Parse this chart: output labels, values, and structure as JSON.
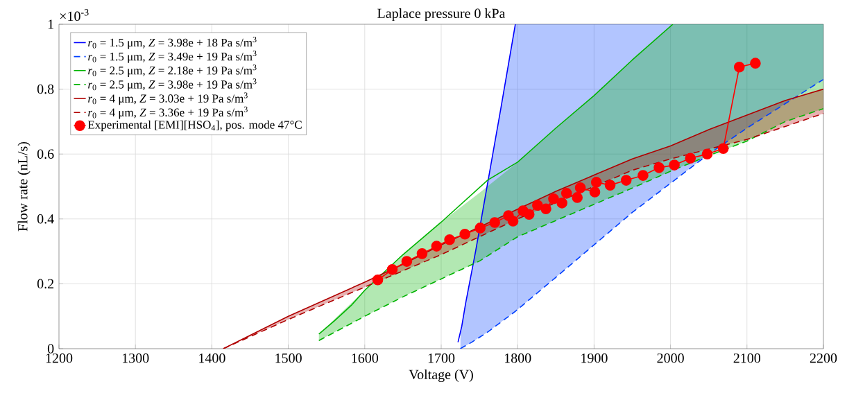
{
  "chart_data": {
    "type": "line",
    "title": "Laplace pressure 0 kPa",
    "xlabel": "Voltage (V)",
    "ylabel": "Flow rate (nL/s)",
    "annotations": [
      "×10$^{-3}$"
    ],
    "xlim": [
      1200,
      2200
    ],
    "xticks": [
      1200,
      1300,
      1400,
      1500,
      1600,
      1700,
      1800,
      1900,
      2000,
      2100,
      2200
    ],
    "ylim": [
      0,
      1
    ],
    "yticks": [
      0,
      0.2,
      0.4,
      0.6,
      0.8,
      1
    ],
    "grid": true,
    "legend": "top left",
    "series": [
      {
        "name": "*r*$_{0}$ = 1.5 μm, *Z* = 3.98e + 18 Pa s/m$^{3}$",
        "color": "#0000ff",
        "line_style": "solid",
        "x": [
          1722,
          1727,
          1732,
          1745,
          1760,
          1778,
          1797
        ],
        "values": [
          0.02,
          0.07,
          0.14,
          0.3,
          0.5,
          0.74,
          1.0
        ]
      },
      {
        "name": "*r*$_{0}$ = 1.5 μm, *Z* = 3.49e + 19 Pa s/m$^{3}$",
        "color": "#0040ff",
        "line_style": "dashed",
        "x": [
          1725,
          1740,
          1760,
          1797,
          1850,
          1900,
          1950,
          2000,
          2050,
          2100,
          2150,
          2200
        ],
        "values": [
          0,
          0.02,
          0.05,
          0.115,
          0.22,
          0.32,
          0.42,
          0.51,
          0.6,
          0.68,
          0.755,
          0.83
        ],
        "lower": [
          0,
          0.02,
          0.05,
          0.115,
          0.22,
          0.32,
          0.42,
          0.51,
          0.6,
          0.68,
          0.755,
          0.83
        ],
        "upper": [
          0.05,
          0.24,
          0.5,
          1,
          1,
          1,
          1,
          1,
          1,
          1,
          1,
          1
        ]
      },
      {
        "name": "*r*$_{0}$ = 2.5 μm, *Z* = 2.18e + 19 Pa s/m$^{3}$",
        "color": "#00b400",
        "line_style": "solid",
        "x": [
          1540,
          1560,
          1583,
          1600,
          1650,
          1700,
          1761,
          1800,
          1850,
          1900,
          1950,
          2003
        ],
        "values": [
          0.045,
          0.085,
          0.135,
          0.18,
          0.29,
          0.39,
          0.52,
          0.575,
          0.68,
          0.78,
          0.89,
          1.0
        ]
      },
      {
        "name": "*r*$_{0}$ = 2.5 μm, *Z* = 3.98e + 19 Pa s/m$^{3}$",
        "color": "#00b400",
        "line_style": "dashed",
        "x": [
          1540,
          1600,
          1650,
          1700,
          1750,
          1800,
          1850,
          1900,
          1950,
          2003,
          2050,
          2100,
          2150,
          2200
        ],
        "values": [
          0.025,
          0.1,
          0.16,
          0.215,
          0.27,
          0.345,
          0.395,
          0.445,
          0.495,
          0.55,
          0.595,
          0.64,
          0.7,
          0.74
        ],
        "lower": [
          0.025,
          0.1,
          0.16,
          0.215,
          0.27,
          0.345,
          0.395,
          0.445,
          0.495,
          0.55,
          0.595,
          0.64,
          0.7,
          0.74
        ],
        "upper": [
          0.045,
          0.18,
          0.29,
          0.39,
          0.48,
          0.575,
          0.68,
          0.78,
          0.89,
          1,
          1,
          1,
          1,
          1
        ]
      },
      {
        "name": "*r*$_{0}$ = 4 μm, *Z* = 3.03e + 19 Pa s/m$^{3}$",
        "color": "#b00000",
        "line_style": "solid",
        "x": [
          1415,
          1500,
          1600,
          1650,
          1700,
          1750,
          1800,
          1850,
          1900,
          1950,
          2000,
          2050,
          2100,
          2150,
          2200
        ],
        "values": [
          0,
          0.1,
          0.205,
          0.26,
          0.32,
          0.375,
          0.43,
          0.485,
          0.535,
          0.585,
          0.625,
          0.675,
          0.72,
          0.765,
          0.8
        ]
      },
      {
        "name": "*r*$_{0}$ = 4 μm, *Z* = 3.36e + 19 Pa s/m$^{3}$",
        "color": "#b00000",
        "line_style": "dashed",
        "x": [
          1415,
          1500,
          1600,
          1650,
          1700,
          1750,
          1800,
          1850,
          1900,
          1950,
          2000,
          2050,
          2100,
          2150,
          2200
        ],
        "values": [
          0,
          0.09,
          0.19,
          0.24,
          0.29,
          0.345,
          0.4,
          0.45,
          0.5,
          0.55,
          0.585,
          0.615,
          0.645,
          0.685,
          0.725
        ],
        "lower": [
          0,
          0.09,
          0.19,
          0.24,
          0.29,
          0.345,
          0.4,
          0.45,
          0.5,
          0.55,
          0.585,
          0.615,
          0.645,
          0.685,
          0.725
        ],
        "upper": [
          0,
          0.1,
          0.205,
          0.26,
          0.32,
          0.375,
          0.43,
          0.485,
          0.535,
          0.585,
          0.625,
          0.675,
          0.72,
          0.765,
          0.8
        ]
      },
      {
        "name": "Experimental [EMI][HSO$_{4}$], pos. mode 47°C",
        "color": "#ff0000",
        "line_style": "solid",
        "marker": "circle",
        "x": [
          1617,
          1636,
          1655,
          1675,
          1694,
          1711,
          1731,
          1751,
          1770,
          1773,
          1788,
          1794,
          1807,
          1815,
          1826,
          1837,
          1847,
          1858,
          1864,
          1878,
          1882,
          1901,
          1903,
          1921,
          1942,
          1964,
          1985,
          2005,
          2026,
          2048,
          2069,
          2090,
          2111
        ],
        "values": [
          0.212,
          0.244,
          0.269,
          0.293,
          0.316,
          0.336,
          0.353,
          0.372,
          0.389,
          null,
          0.41,
          0.393,
          0.425,
          0.414,
          0.442,
          0.431,
          0.462,
          0.449,
          0.479,
          0.466,
          0.496,
          0.483,
          0.513,
          0.504,
          0.519,
          0.534,
          0.558,
          0.566,
          0.587,
          0.6,
          0.617,
          0.868,
          0.88
        ]
      }
    ]
  }
}
